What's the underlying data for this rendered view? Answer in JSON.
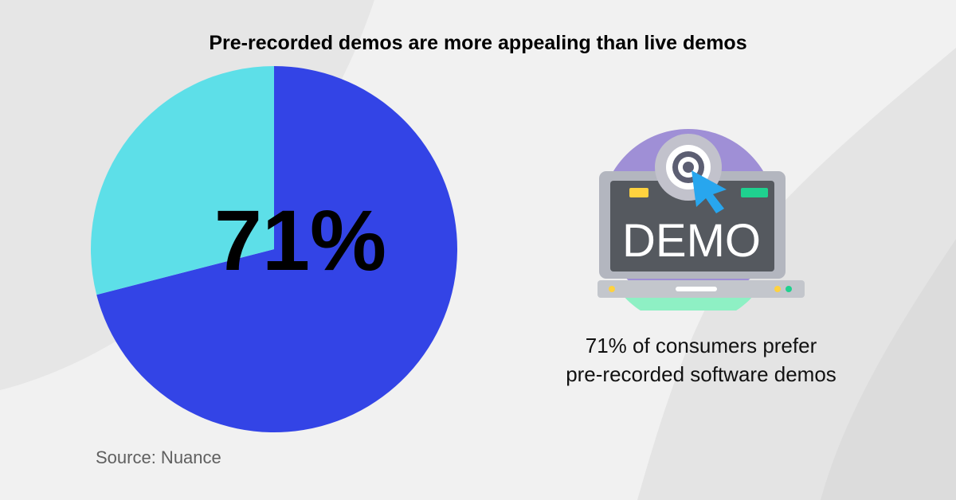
{
  "title": "Pre-recorded demos are more appealing than live demos",
  "source": "Source: Nuance",
  "highlight_value": "71%",
  "caption": {
    "line1": "71% of consumers prefer",
    "line2": "pre-recorded software demos"
  },
  "icon": {
    "name": "demo-laptop-icon",
    "label": "DEMO"
  },
  "colors": {
    "preferred": "#3344e6",
    "other": "#5ddfe8",
    "background": "#f1f1f1"
  },
  "chart_data": {
    "type": "pie",
    "title": "Pre-recorded demos are more appealing than live demos",
    "slices": [
      {
        "value": 71,
        "color": "#3344e6"
      },
      {
        "value": 29,
        "color": "#5ddfe8"
      }
    ],
    "data_labels": [
      "71%"
    ]
  }
}
